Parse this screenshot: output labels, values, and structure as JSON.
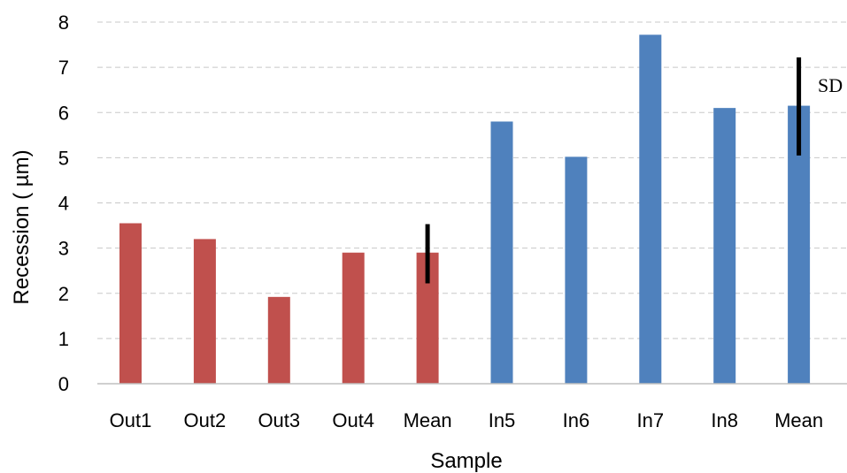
{
  "chart_data": {
    "type": "bar",
    "title": "",
    "xlabel": "Sample",
    "ylabel": "Recession ( µm)",
    "ylim": [
      0,
      8
    ],
    "yticks": [
      "0",
      "1",
      "2",
      "3",
      "4",
      "5",
      "6",
      "7",
      "8"
    ],
    "grid": true,
    "categories": [
      "Out1",
      "Out2",
      "Out3",
      "Out4",
      "Mean",
      "In5",
      "In6",
      "In7",
      "In8",
      "Mean"
    ],
    "values": [
      3.55,
      3.2,
      1.92,
      2.9,
      2.9,
      5.8,
      5.02,
      7.72,
      6.1,
      6.15
    ],
    "groups": [
      "Out",
      "Out",
      "Out",
      "Out",
      "Out",
      "In",
      "In",
      "In",
      "In",
      "In"
    ],
    "error_bars": [
      {
        "category_index": 4,
        "low": 2.22,
        "high": 3.53
      },
      {
        "category_index": 9,
        "low": 5.05,
        "high": 7.22
      }
    ],
    "annotation": "SD",
    "colors": {
      "Out": "#c0504d",
      "In": "#4f81bd",
      "error_bar": "#000000"
    }
  }
}
